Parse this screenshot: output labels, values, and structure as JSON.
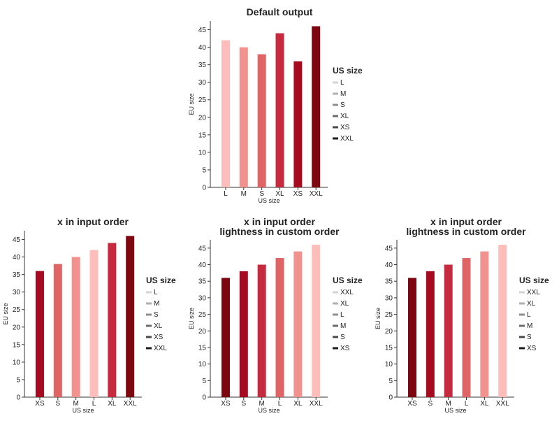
{
  "chart_data": [
    {
      "type": "bar",
      "title": [
        "Default output"
      ],
      "xlabel": "US size",
      "ylabel": "EU size",
      "categories": [
        "L",
        "M",
        "S",
        "XL",
        "XS",
        "XXL"
      ],
      "values": [
        42,
        40,
        38,
        44,
        36,
        46
      ],
      "colors": [
        "#fcbdbb",
        "#f2928f",
        "#df6465",
        "#c52a3f",
        "#a50a20",
        "#7c0710"
      ],
      "yticks": [
        0,
        5,
        10,
        15,
        20,
        25,
        30,
        35,
        40,
        45
      ],
      "ylim": [
        0,
        47.5
      ],
      "grid": false,
      "legend": {
        "title": "US size",
        "placement": "right",
        "labels": [
          "L",
          "M",
          "S",
          "XL",
          "XS",
          "XXL"
        ],
        "colors": [
          "#d3d3d3",
          "#b0b0b0",
          "#8f8f8f",
          "#6b6b6b",
          "#484848",
          "#1c1c1c"
        ]
      }
    },
    {
      "type": "bar",
      "title": [
        "x in input order"
      ],
      "xlabel": "US size",
      "ylabel": "EU size",
      "categories": [
        "XS",
        "S",
        "M",
        "L",
        "XL",
        "XXL"
      ],
      "values": [
        36,
        38,
        40,
        42,
        44,
        46
      ],
      "colors": [
        "#a50a20",
        "#df6465",
        "#f2928f",
        "#fcbdbb",
        "#c52a3f",
        "#7c0710"
      ],
      "yticks": [
        0,
        5,
        10,
        15,
        20,
        25,
        30,
        35,
        40,
        45
      ],
      "ylim": [
        0,
        47.5
      ],
      "grid": false,
      "legend": {
        "title": "US size",
        "placement": "right",
        "labels": [
          "L",
          "M",
          "S",
          "XL",
          "XS",
          "XXL"
        ],
        "colors": [
          "#d3d3d3",
          "#b0b0b0",
          "#8f8f8f",
          "#6b6b6b",
          "#484848",
          "#1c1c1c"
        ]
      }
    },
    {
      "type": "bar",
      "title": [
        "x in input order",
        "lightness in custom order"
      ],
      "xlabel": "US size",
      "ylabel": "EU size",
      "categories": [
        "XS",
        "S",
        "M",
        "L",
        "XL",
        "XXL"
      ],
      "values": [
        36,
        38,
        40,
        42,
        44,
        46
      ],
      "colors": [
        "#7c0710",
        "#a50a20",
        "#c52a3f",
        "#df6465",
        "#f2928f",
        "#fcbdbb"
      ],
      "yticks": [
        0,
        5,
        10,
        15,
        20,
        25,
        30,
        35,
        40,
        45
      ],
      "ylim": [
        0,
        47.5
      ],
      "grid": false,
      "legend": {
        "title": "US size",
        "placement": "right",
        "labels": [
          "XXL",
          "XL",
          "L",
          "M",
          "S",
          "XS"
        ],
        "colors": [
          "#d3d3d3",
          "#b0b0b0",
          "#8f8f8f",
          "#6b6b6b",
          "#484848",
          "#1c1c1c"
        ]
      }
    },
    {
      "type": "bar",
      "title": [
        "x in input order",
        "lightness in custom order"
      ],
      "xlabel": "US size",
      "ylabel": "EU size",
      "categories": [
        "XS",
        "S",
        "M",
        "L",
        "XL",
        "XXL"
      ],
      "values": [
        36,
        38,
        40,
        42,
        44,
        46
      ],
      "colors": [
        "#7c0710",
        "#a50a20",
        "#c52a3f",
        "#df6465",
        "#f2928f",
        "#fcbdbb"
      ],
      "yticks": [
        0,
        5,
        10,
        15,
        20,
        25,
        30,
        35,
        40,
        45
      ],
      "ylim": [
        0,
        47.5
      ],
      "grid": false,
      "legend": {
        "title": "US size",
        "placement": "right",
        "labels": [
          "XXL",
          "XL",
          "L",
          "M",
          "S",
          "XS"
        ],
        "colors": [
          "#d3d3d3",
          "#b0b0b0",
          "#8f8f8f",
          "#6b6b6b",
          "#484848",
          "#1c1c1c"
        ]
      }
    }
  ]
}
